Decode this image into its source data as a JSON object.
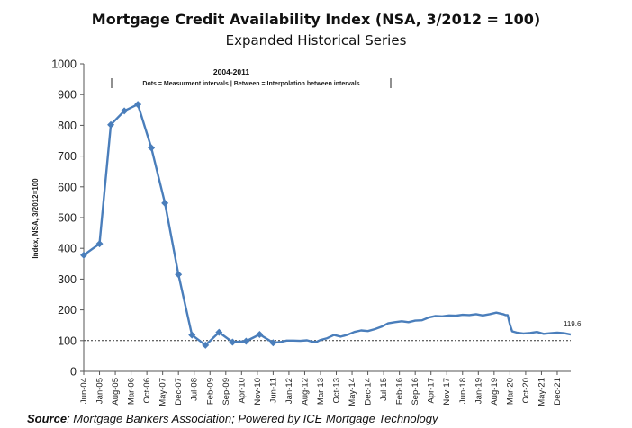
{
  "chart_data": {
    "type": "line",
    "title": "Mortgage Credit Availability Index (NSA, 3/2012 = 100)",
    "subtitle": "Expanded Historical Series",
    "ylabel": "Index, NSA, 3/2012=100",
    "ylim": [
      0,
      1000
    ],
    "yticks": [
      "0",
      "100",
      "200",
      "300",
      "400",
      "500",
      "600",
      "700",
      "800",
      "900",
      "1000"
    ],
    "x_start": "2004-06",
    "x_end": "2022-06",
    "xtick_labels": [
      "Jun-04",
      "Jan-05",
      "Aug-05",
      "Mar-06",
      "Oct-06",
      "May-07",
      "Dec-07",
      "Jul-08",
      "Feb-09",
      "Sep-09",
      "Apr-10",
      "Nov-10",
      "Jun-11",
      "Jan-12",
      "Aug-12",
      "Mar-13",
      "Oct-13",
      "May-14",
      "Dec-14",
      "Jul-15",
      "Feb-16",
      "Sep-16",
      "Apr-17",
      "Nov-17",
      "Jun-18",
      "Jan-19",
      "Aug-19",
      "Mar-20",
      "Oct-20",
      "May-21",
      "Dec-21"
    ],
    "reference_line": 100,
    "annotation": {
      "heading": "2004-2011",
      "text": "Dots = Measurment intervals  |  Between = Interpolation between intervals"
    },
    "end_label": "119.6",
    "series": [
      {
        "color": "#4a7ebb",
        "markers": [
          [
            "2004-06",
            378
          ],
          [
            "2005-01",
            415
          ],
          [
            "2005-06",
            802
          ],
          [
            "2005-12",
            847
          ],
          [
            "2006-06",
            868
          ],
          [
            "2006-12",
            727
          ],
          [
            "2007-06",
            547
          ],
          [
            "2007-12",
            315
          ],
          [
            "2008-06",
            118
          ],
          [
            "2008-12",
            85
          ],
          [
            "2009-06",
            127
          ],
          [
            "2009-12",
            95
          ],
          [
            "2010-06",
            98
          ],
          [
            "2010-12",
            120
          ],
          [
            "2011-06",
            93
          ]
        ],
        "points": [
          [
            "2004-06",
            378
          ],
          [
            "2005-01",
            415
          ],
          [
            "2005-06",
            802
          ],
          [
            "2005-12",
            847
          ],
          [
            "2006-06",
            868
          ],
          [
            "2006-12",
            727
          ],
          [
            "2007-06",
            547
          ],
          [
            "2007-12",
            315
          ],
          [
            "2008-06",
            118
          ],
          [
            "2008-12",
            85
          ],
          [
            "2009-06",
            127
          ],
          [
            "2009-12",
            95
          ],
          [
            "2010-06",
            98
          ],
          [
            "2010-12",
            120
          ],
          [
            "2011-06",
            93
          ],
          [
            "2011-09",
            95
          ],
          [
            "2011-12",
            100
          ],
          [
            "2012-03",
            100
          ],
          [
            "2012-06",
            99
          ],
          [
            "2012-09",
            101
          ],
          [
            "2012-11",
            97
          ],
          [
            "2013-01",
            95
          ],
          [
            "2013-03",
            102
          ],
          [
            "2013-06",
            108
          ],
          [
            "2013-09",
            118
          ],
          [
            "2013-12",
            113
          ],
          [
            "2014-03",
            119
          ],
          [
            "2014-06",
            128
          ],
          [
            "2014-09",
            133
          ],
          [
            "2014-12",
            131
          ],
          [
            "2015-03",
            137
          ],
          [
            "2015-06",
            145
          ],
          [
            "2015-09",
            156
          ],
          [
            "2015-12",
            160
          ],
          [
            "2016-03",
            163
          ],
          [
            "2016-06",
            160
          ],
          [
            "2016-09",
            165
          ],
          [
            "2016-12",
            166
          ],
          [
            "2017-03",
            175
          ],
          [
            "2017-06",
            180
          ],
          [
            "2017-09",
            179
          ],
          [
            "2017-12",
            182
          ],
          [
            "2018-03",
            181
          ],
          [
            "2018-06",
            184
          ],
          [
            "2018-09",
            183
          ],
          [
            "2018-12",
            186
          ],
          [
            "2019-03",
            182
          ],
          [
            "2019-06",
            186
          ],
          [
            "2019-09",
            191
          ],
          [
            "2019-12",
            186
          ],
          [
            "2020-01",
            183
          ],
          [
            "2020-02",
            183
          ],
          [
            "2020-03",
            152
          ],
          [
            "2020-04",
            130
          ],
          [
            "2020-06",
            126
          ],
          [
            "2020-09",
            123
          ],
          [
            "2020-12",
            125
          ],
          [
            "2021-03",
            128
          ],
          [
            "2021-06",
            122
          ],
          [
            "2021-09",
            124
          ],
          [
            "2021-12",
            126
          ],
          [
            "2022-03",
            124
          ],
          [
            "2022-06",
            119.6
          ]
        ]
      }
    ],
    "source_label": "Source",
    "source_text": ": Mortgage Bankers Association; Powered by ICE Mortgage Technology"
  }
}
